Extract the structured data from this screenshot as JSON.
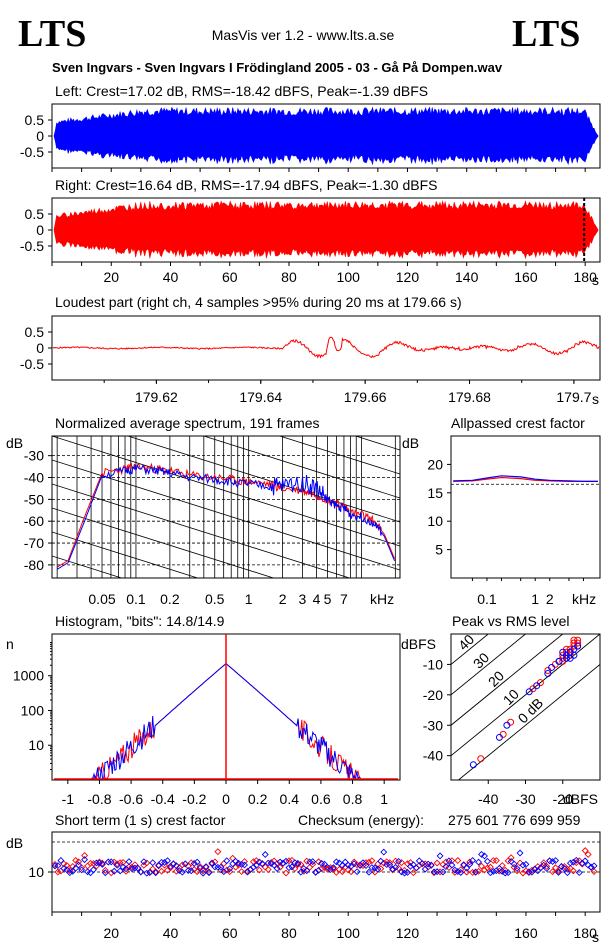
{
  "header": {
    "logo_left": "LTS",
    "logo_right": "LTS",
    "app_title": "MasVis ver 1.2 - www.lts.a.se",
    "file_title": "Sven Ingvars - Sven Ingvars I Frödingland 2005 - 03 - Gå På Dompen.wav"
  },
  "colors": {
    "left": "#0000ff",
    "right": "#ff0000",
    "grid": "#000000"
  },
  "chart_data": [
    {
      "id": "left-waveform",
      "type": "area",
      "title": "Left: Crest=17.02 dB, RMS=-18.42 dBFS, Peak=-1.39 dBFS",
      "yticks": [
        "0.5",
        "0",
        "-0.5"
      ],
      "ylim": [
        -1,
        1
      ],
      "xlim": [
        0,
        185
      ],
      "series": [
        {
          "color": "#0000ff",
          "envelope_amplitude": 0.9
        }
      ]
    },
    {
      "id": "right-waveform",
      "type": "area",
      "title": "Right: Crest=16.64 dB, RMS=-17.94 dBFS, Peak=-1.30 dBFS",
      "yticks": [
        "0.5",
        "0",
        "-0.5"
      ],
      "ylim": [
        -1,
        1
      ],
      "xlim": [
        0,
        185
      ],
      "xticks": [
        "20",
        "40",
        "60",
        "80",
        "100",
        "120",
        "140",
        "160",
        "180"
      ],
      "xunit": "s",
      "marker_x": 179.66,
      "series": [
        {
          "color": "#ff0000",
          "envelope_amplitude": 0.9
        }
      ]
    },
    {
      "id": "loudest-part",
      "type": "line",
      "title": "Loudest part (right ch, 4 samples >95% during 20 ms at 179.66 s)",
      "yticks": [
        "0.5",
        "0",
        "-0.5"
      ],
      "ylim": [
        -1,
        1
      ],
      "xlim": [
        179.6,
        179.705
      ],
      "xticks": [
        "179.62",
        "179.64",
        "179.66",
        "179.68",
        "179.7"
      ],
      "xunit": "s",
      "series": [
        {
          "color": "#ff0000"
        }
      ]
    },
    {
      "id": "spectrum",
      "type": "line",
      "title": "Normalized average spectrum, 191 frames",
      "ylabel": "dB",
      "xunit": "kHz",
      "yticks": [
        "-30",
        "-40",
        "-50",
        "-60",
        "-70",
        "-80"
      ],
      "xticks": [
        "0.05",
        "0.1",
        "0.2",
        "0.5",
        "1",
        "2",
        "3",
        "4",
        "5",
        "7"
      ],
      "ylim": [
        -86,
        -21
      ],
      "x_khz": [
        0.02,
        0.025,
        0.035,
        0.05,
        0.08,
        0.1,
        0.15,
        0.2,
        0.3,
        0.5,
        0.7,
        1,
        1.5,
        2,
        3,
        4,
        5,
        6,
        7,
        8,
        10,
        13,
        16,
        20
      ],
      "series": [
        {
          "color": "#ff0000",
          "values": [
            -81,
            -78,
            -58,
            -38,
            -36,
            -35,
            -36,
            -37,
            -39,
            -40,
            -41,
            -42,
            -43,
            -45,
            -46,
            -48,
            -50,
            -52,
            -53,
            -56,
            -57,
            -60,
            -66,
            -78
          ]
        },
        {
          "color": "#0000ff",
          "values": [
            -82,
            -79,
            -60,
            -39,
            -37,
            -36,
            -37,
            -38,
            -40,
            -41,
            -42,
            -43,
            -44,
            -44,
            -42,
            -45,
            -50,
            -53,
            -54,
            -57,
            -58,
            -61,
            -67,
            -79
          ]
        }
      ]
    },
    {
      "id": "allpass-crest",
      "type": "line",
      "title": "Allpassed crest factor",
      "ylabel": "dB",
      "xunit": "kHz",
      "yticks": [
        "20",
        "15",
        "10",
        "5"
      ],
      "xticks": [
        "0.1",
        "1",
        "2"
      ],
      "ylim": [
        0,
        25
      ],
      "x_khz": [
        0.02,
        0.05,
        0.1,
        0.2,
        0.5,
        1,
        2,
        5,
        10,
        20
      ],
      "series": [
        {
          "color": "#ff0000",
          "values": [
            17.0,
            17.1,
            17.4,
            17.7,
            17.5,
            17.2,
            17.1,
            17.0,
            17.0,
            17.0
          ]
        },
        {
          "color": "#0000ff",
          "values": [
            17.1,
            17.2,
            17.6,
            18.0,
            17.8,
            17.4,
            17.2,
            17.1,
            17.0,
            17.0
          ]
        }
      ]
    },
    {
      "id": "histogram",
      "type": "line",
      "title": "Histogram, \"bits\": 14.8/14.9",
      "ylabel": "n",
      "yticks": [
        "1000",
        "100",
        "10"
      ],
      "xticks": [
        "-1",
        "-0.8",
        "-0.6",
        "-0.4",
        "-0.2",
        "0",
        "0.2",
        "0.4",
        "0.6",
        "0.8",
        "1"
      ],
      "xlim": [
        -1.1,
        1.1
      ],
      "ylog_range": [
        0,
        4.2
      ],
      "peak_log": 3.35,
      "edge_x": 0.85
    },
    {
      "id": "peak-vs-rms",
      "type": "scatter",
      "title": "Peak vs RMS level",
      "ylabel": "dBFS",
      "xlabel": "dBFS",
      "yticks": [
        "-10",
        "-20",
        "-30",
        "-40"
      ],
      "xticks": [
        "-40",
        "-30",
        "-20"
      ],
      "diag_labels": [
        "40",
        "30",
        "20",
        "10",
        "0 dB"
      ],
      "xlim": [
        -50,
        -10
      ],
      "ylim": [
        -48,
        0
      ],
      "series": [
        {
          "color": "#ff0000",
          "points": [
            [
              -34,
              -29
            ],
            [
              -26,
              -16
            ],
            [
              -24,
              -12
            ],
            [
              -20,
              -8
            ],
            [
              -19,
              -6
            ],
            [
              -18,
              -5
            ],
            [
              -17,
              -4
            ],
            [
              -17,
              -3
            ],
            [
              -16,
              -3
            ],
            [
              -16,
              -4
            ],
            [
              -18,
              -6
            ],
            [
              -20,
              -9
            ],
            [
              -22,
              -10
            ],
            [
              -28,
              -18
            ],
            [
              -36,
              -33
            ],
            [
              -42,
              -41
            ],
            [
              -18,
              -7
            ],
            [
              -19,
              -5
            ],
            [
              -17,
              -2
            ],
            [
              -16,
              -2
            ],
            [
              -20,
              -7
            ]
          ]
        },
        {
          "color": "#0000ff",
          "points": [
            [
              -35,
              -30
            ],
            [
              -27,
              -17
            ],
            [
              -24,
              -13
            ],
            [
              -21,
              -9
            ],
            [
              -19,
              -7
            ],
            [
              -18,
              -6
            ],
            [
              -17,
              -5
            ],
            [
              -16,
              -4
            ],
            [
              -17,
              -7
            ],
            [
              -19,
              -8
            ],
            [
              -21,
              -9
            ],
            [
              -23,
              -11
            ],
            [
              -29,
              -19
            ],
            [
              -37,
              -34
            ],
            [
              -44,
              -43
            ],
            [
              -18,
              -8
            ],
            [
              -20,
              -6
            ]
          ]
        }
      ]
    },
    {
      "id": "short-term-crest",
      "type": "scatter",
      "title": "Short term (1 s) crest factor",
      "ylabel": "dB",
      "yticks": [
        "10"
      ],
      "ylim": [
        0,
        20
      ],
      "xlim": [
        0,
        185
      ],
      "xticks": [
        "20",
        "40",
        "60",
        "80",
        "100",
        "120",
        "140",
        "160",
        "180"
      ],
      "xunit": "s",
      "red_seed": 12,
      "blue_seed": 34,
      "mean_db": 11.3
    }
  ],
  "checksum": {
    "label": "Checksum (energy):",
    "value": "275 601 776 699 959"
  }
}
